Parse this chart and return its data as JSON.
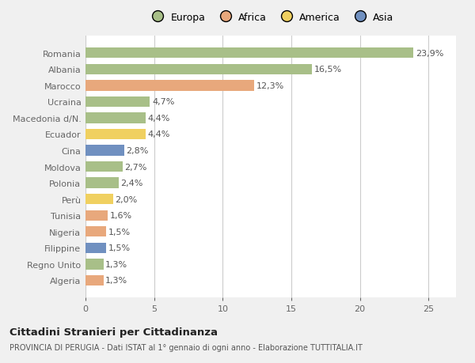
{
  "categories": [
    "Algeria",
    "Regno Unito",
    "Filippine",
    "Nigeria",
    "Tunisia",
    "Perù",
    "Polonia",
    "Moldova",
    "Cina",
    "Ecuador",
    "Macedonia d/N.",
    "Ucraina",
    "Marocco",
    "Albania",
    "Romania"
  ],
  "values": [
    1.3,
    1.3,
    1.5,
    1.5,
    1.6,
    2.0,
    2.4,
    2.7,
    2.8,
    4.4,
    4.4,
    4.7,
    12.3,
    16.5,
    23.9
  ],
  "labels": [
    "1,3%",
    "1,3%",
    "1,5%",
    "1,5%",
    "1,6%",
    "2,0%",
    "2,4%",
    "2,7%",
    "2,8%",
    "4,4%",
    "4,4%",
    "4,7%",
    "12,3%",
    "16,5%",
    "23,9%"
  ],
  "continents": [
    "Africa",
    "Europa",
    "Asia",
    "Africa",
    "Africa",
    "America",
    "Europa",
    "Europa",
    "Asia",
    "America",
    "Europa",
    "Europa",
    "Africa",
    "Europa",
    "Europa"
  ],
  "colors": {
    "Europa": "#a8bf88",
    "Africa": "#e8a87c",
    "America": "#f0d060",
    "Asia": "#7090c0"
  },
  "legend_labels": [
    "Europa",
    "Africa",
    "America",
    "Asia"
  ],
  "legend_colors": [
    "#a8bf88",
    "#e8a87c",
    "#f0d060",
    "#7090c0"
  ],
  "xlim": [
    0,
    27
  ],
  "xticks": [
    0,
    5,
    10,
    15,
    20,
    25
  ],
  "bg_color": "#f0f0f0",
  "plot_bg_color": "#ffffff",
  "title": "Cittadini Stranieri per Cittadinanza",
  "subtitle": "PROVINCIA DI PERUGIA - Dati ISTAT al 1° gennaio di ogni anno - Elaborazione TUTTITALIA.IT",
  "bar_height": 0.65,
  "label_fontsize": 8,
  "tick_fontsize": 8,
  "legend_fontsize": 9
}
